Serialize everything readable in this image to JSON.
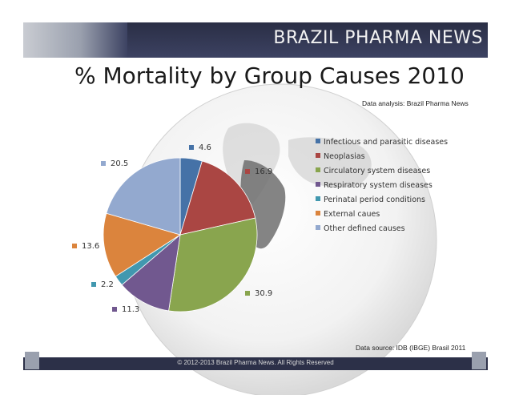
{
  "banner": {
    "title": "BRAZIL PHARMA NEWS"
  },
  "slide_title": "% Mortality by Group Causes 2010",
  "analysis_note": "Data analysis: Brazil Pharma News",
  "source_note": "Data source: IDB (IBGE) Brasil 2011",
  "footer": {
    "copyright": "© 2012-2013  Brazil Pharma News. All Rights Reserved"
  },
  "chart_data": {
    "type": "pie",
    "title": "% Mortality by Group Causes 2010",
    "categories": [
      "Infectious and parasitic diseases",
      "Neoplasias",
      "Circulatory system diseases",
      "Respiratory system diseases",
      "Perinatal period conditions",
      "External caues",
      "Other defined causes"
    ],
    "values": [
      4.6,
      16.9,
      30.9,
      11.3,
      2.2,
      13.6,
      20.5
    ],
    "value_labels": [
      "4.6",
      "16.9",
      "30.9",
      "11.3",
      "2.2",
      "13.6",
      "20.5"
    ],
    "colors": [
      "#4572a7",
      "#aa4643",
      "#89a54e",
      "#71588f",
      "#4198af",
      "#db843d",
      "#93a9cf"
    ],
    "legend_position": "right",
    "start_angle_deg": 0,
    "direction": "clockwise"
  }
}
